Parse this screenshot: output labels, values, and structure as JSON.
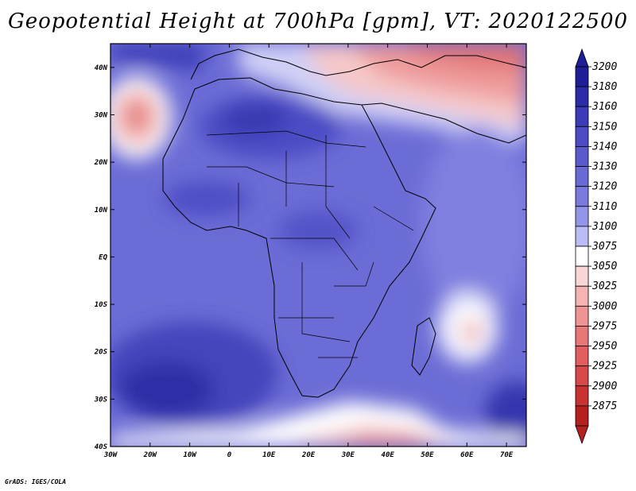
{
  "title": "Geopotential Height at 700hPa [gpm], VT: 2020122500",
  "credit": "GrADS: IGES/COLA",
  "map": {
    "variable": "Geopotential Height",
    "level": "700hPa",
    "units": "gpm",
    "valid_time": "2020122500",
    "lon_range": [
      -30,
      75
    ],
    "lat_range": [
      -40,
      45
    ],
    "lon_ticks": [
      "30W",
      "20W",
      "10W",
      "0",
      "10E",
      "20E",
      "30E",
      "40E",
      "50E",
      "60E",
      "70E"
    ],
    "lat_ticks": [
      "40N",
      "30N",
      "20N",
      "10N",
      "EQ",
      "10S",
      "20S",
      "30S",
      "40S"
    ]
  },
  "colorbar": {
    "labels": [
      "3200",
      "3180",
      "3160",
      "3150",
      "3140",
      "3130",
      "3120",
      "3110",
      "3100",
      "3075",
      "3050",
      "3025",
      "3000",
      "2975",
      "2950",
      "2925",
      "2900",
      "2875"
    ],
    "colors": [
      "#1e1e96",
      "#2c2ca8",
      "#3c3cb8",
      "#4b4bc4",
      "#5a5acc",
      "#6a6ad4",
      "#7a7ade",
      "#9494e8",
      "#bcbcf4",
      "#ffffff",
      "#fad7d7",
      "#f4b4b4",
      "#ee9494",
      "#e87878",
      "#e05e5e",
      "#d84848",
      "#c83232",
      "#b42020"
    ],
    "top_arrow_color": "#1e1e96",
    "bottom_arrow_color": "#b42020"
  }
}
